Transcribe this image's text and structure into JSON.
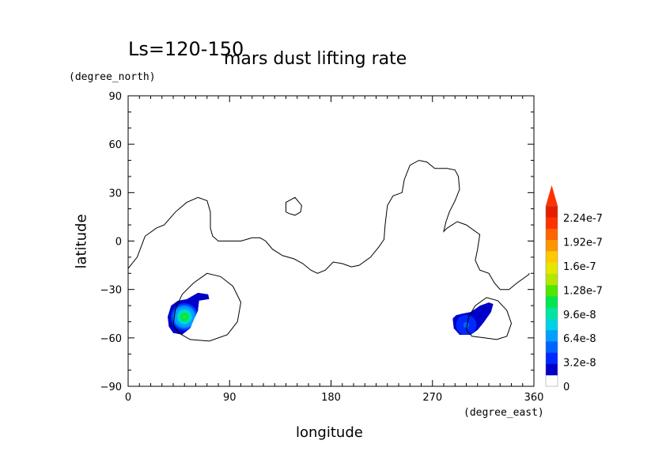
{
  "chart_data": {
    "type": "heatmap",
    "title": "mars dust lifting rate",
    "subtitle": "Ls=120-150",
    "xlabel": "longitude",
    "ylabel": "latitude",
    "xunit": "(degree_east)",
    "yunit": "(degree_north)",
    "xlim": [
      0,
      360
    ],
    "ylim": [
      -90,
      90
    ],
    "xticks": [
      0,
      90,
      180,
      270,
      360
    ],
    "yticks": [
      90,
      60,
      30,
      0,
      -30,
      -60,
      -90
    ],
    "colorbar": {
      "min": 0,
      "max": 2.4e-07,
      "extend": "max",
      "tick_labels": [
        "0",
        "3.2e-8",
        "6.4e-8",
        "9.6e-8",
        "1.28e-7",
        "1.6e-7",
        "1.92e-7",
        "2.24e-7"
      ],
      "tick_values": [
        0,
        3.2e-08,
        6.4e-08,
        9.6e-08,
        1.28e-07,
        1.6e-07,
        1.92e-07,
        2.24e-07
      ],
      "colors": [
        "#ffffff",
        "#0000c8",
        "#0028ff",
        "#0064ff",
        "#00a0ff",
        "#00d2e6",
        "#00e6a0",
        "#00e650",
        "#50e600",
        "#b4e600",
        "#e6e600",
        "#ffc800",
        "#ff9600",
        "#ff6400",
        "#ff3200",
        "#e61e00"
      ]
    },
    "contour_lines": [
      [
        [
          0,
          -17
        ],
        [
          8,
          -10
        ],
        [
          15,
          3
        ],
        [
          25,
          8
        ],
        [
          32,
          10
        ],
        [
          42,
          18
        ],
        [
          52,
          24
        ],
        [
          62,
          27
        ],
        [
          70,
          25
        ],
        [
          73,
          18
        ],
        [
          73,
          8
        ],
        [
          75,
          3
        ],
        [
          80,
          0
        ],
        [
          90,
          0
        ],
        [
          100,
          0
        ],
        [
          110,
          2
        ],
        [
          117,
          2
        ],
        [
          122,
          0
        ],
        [
          128,
          -5
        ],
        [
          137,
          -9
        ],
        [
          147,
          -11
        ],
        [
          155,
          -14
        ],
        [
          162,
          -18
        ],
        [
          168,
          -20
        ],
        [
          175,
          -18
        ],
        [
          182,
          -13
        ],
        [
          190,
          -14
        ],
        [
          198,
          -16
        ],
        [
          205,
          -15
        ],
        [
          215,
          -10
        ],
        [
          222,
          -4
        ],
        [
          227,
          1
        ],
        [
          228,
          10
        ],
        [
          230,
          22
        ],
        [
          235,
          28
        ],
        [
          243,
          30
        ],
        [
          245,
          38
        ],
        [
          250,
          47
        ],
        [
          258,
          50
        ],
        [
          265,
          49
        ],
        [
          272,
          45
        ],
        [
          283,
          45
        ],
        [
          290,
          44
        ],
        [
          293,
          40
        ],
        [
          294,
          32
        ],
        [
          290,
          25
        ],
        [
          285,
          18
        ],
        [
          282,
          12
        ],
        [
          280,
          6
        ],
        [
          283,
          8
        ],
        [
          292,
          12
        ],
        [
          300,
          10
        ],
        [
          312,
          4
        ],
        [
          310,
          -5
        ],
        [
          308,
          -12
        ],
        [
          312,
          -18
        ],
        [
          320,
          -20
        ],
        [
          325,
          -26
        ],
        [
          330,
          -30
        ],
        [
          338,
          -30
        ],
        [
          345,
          -26
        ],
        [
          355,
          -21
        ],
        [
          356,
          -20
        ]
      ],
      [
        [
          140,
          18
        ],
        [
          140,
          24
        ],
        [
          148,
          27
        ],
        [
          154,
          22
        ],
        [
          153,
          18
        ],
        [
          148,
          16
        ],
        [
          143,
          17
        ],
        [
          140,
          18
        ]
      ],
      [
        [
          40,
          -52
        ],
        [
          42,
          -42
        ],
        [
          48,
          -33
        ],
        [
          58,
          -26
        ],
        [
          70,
          -20
        ],
        [
          82,
          -22
        ],
        [
          93,
          -28
        ],
        [
          100,
          -38
        ],
        [
          97,
          -50
        ],
        [
          88,
          -58
        ],
        [
          72,
          -62
        ],
        [
          55,
          -61
        ],
        [
          45,
          -57
        ],
        [
          40,
          -52
        ]
      ],
      [
        [
          300,
          -55
        ],
        [
          302,
          -47
        ],
        [
          308,
          -40
        ],
        [
          318,
          -35
        ],
        [
          328,
          -37
        ],
        [
          336,
          -43
        ],
        [
          340,
          -51
        ],
        [
          336,
          -59
        ],
        [
          327,
          -61
        ],
        [
          316,
          -60
        ],
        [
          305,
          -59
        ],
        [
          300,
          -55
        ]
      ]
    ],
    "dust_patches": [
      {
        "outline": [
          [
            35,
            -47
          ],
          [
            38,
            -40
          ],
          [
            44,
            -37
          ],
          [
            52,
            -36
          ],
          [
            57,
            -34
          ],
          [
            62,
            -32
          ],
          [
            71,
            -33
          ],
          [
            72,
            -36
          ],
          [
            63,
            -37
          ],
          [
            62,
            -43
          ],
          [
            58,
            -49
          ],
          [
            55,
            -54
          ],
          [
            48,
            -58
          ],
          [
            40,
            -57
          ],
          [
            36,
            -53
          ],
          [
            35,
            -47
          ]
        ],
        "peak_lon": 50,
        "peak_lat": -47,
        "peak_value": 1.2e-07,
        "radius_deg": 14
      },
      {
        "outline": [
          [
            288,
            -48
          ],
          [
            291,
            -46
          ],
          [
            297,
            -45
          ],
          [
            304,
            -44
          ],
          [
            312,
            -40
          ],
          [
            320,
            -38
          ],
          [
            324,
            -39
          ],
          [
            322,
            -44
          ],
          [
            316,
            -50
          ],
          [
            310,
            -55
          ],
          [
            304,
            -58
          ],
          [
            294,
            -58
          ],
          [
            289,
            -54
          ],
          [
            288,
            -48
          ]
        ],
        "peak_lon": 300,
        "peak_lat": -52,
        "peak_value": 3.8e-08,
        "radius_deg": 16
      }
    ]
  }
}
